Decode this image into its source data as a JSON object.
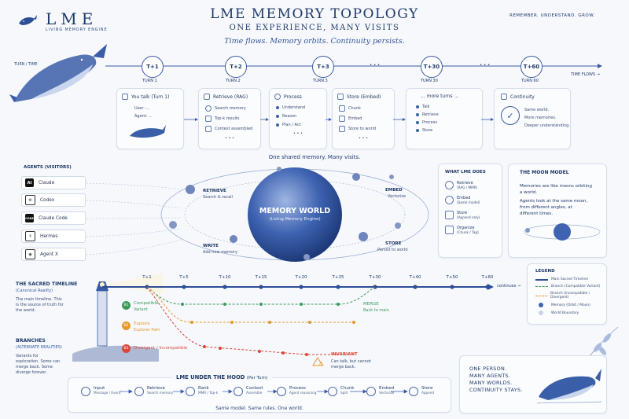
{
  "brand": {
    "name": "LME",
    "tagline": "LIVING MEMORY ENGINE"
  },
  "header": {
    "title": "LME MEMORY TOPOLOGY",
    "subtitle": "ONE EXPERIENCE, MANY VISITS",
    "motto": "Time flows. Memory orbits. Continuity persists.",
    "top_right": "REMEMBER. UNDERSTAND. GROW."
  },
  "timeline": {
    "left_label": "TURN / TIME",
    "right_label": "TIME FLOWS →",
    "nodes": [
      {
        "id": "T+1",
        "caption": "TURN 1"
      },
      {
        "id": "T+2",
        "caption": "TURN 2"
      },
      {
        "id": "T+3",
        "caption": "TURN 3"
      },
      {
        "id": "T+30",
        "caption": "TURN 30"
      },
      {
        "id": "T+60",
        "caption": "TURN 60"
      }
    ],
    "ellipsis": "• • •"
  },
  "turn_cards": {
    "you_talk": {
      "title": "You talk (Turn 1)",
      "user": "User: ...",
      "agent": "Agent: ..."
    },
    "retrieve": {
      "title": "Retrieve (RAG)",
      "items": [
        "Search memory",
        "Top-k results",
        "Context assembled"
      ]
    },
    "process": {
      "title": "Process",
      "items": [
        "Understand",
        "Reason",
        "Plan / Act"
      ]
    },
    "store": {
      "title": "Store (Embed)",
      "items": [
        "Chunk",
        "Embed",
        "Store to world"
      ]
    },
    "more": {
      "title": "... more turns ...",
      "items": [
        "Talk",
        "Retrieve",
        "Process",
        "Store"
      ]
    },
    "continuity": {
      "title": "Continuity",
      "items": [
        "Same world.",
        "More memories.",
        "Deeper understanding."
      ]
    },
    "more_dots": "• • •"
  },
  "shared_caption": "One shared memory. Many visits.",
  "agents": {
    "heading": "AGENTS (VISITORS)",
    "list": [
      {
        "name": "Claude",
        "icon": "AI"
      },
      {
        "name": "Codex",
        "icon": "⚙"
      },
      {
        "name": "Claude Code",
        "icon": "CODE"
      },
      {
        "name": "Hermes",
        "icon": "☤"
      },
      {
        "name": "Agent X",
        "icon": "◉"
      }
    ]
  },
  "world": {
    "title": "MEMORY WORLD",
    "subtitle": "(Living Memory Engine)",
    "retrieve": {
      "label": "RETRIEVE",
      "desc": "Search & recall"
    },
    "write": {
      "label": "WRITE",
      "desc": "Add new memory"
    },
    "embed": {
      "label": "EMBED",
      "desc": "Vectorize"
    },
    "store": {
      "label": "STORE",
      "desc": "Persist to world"
    }
  },
  "what_lme_does": {
    "title": "WHAT LME DOES",
    "items": [
      {
        "name": "Retrieve",
        "desc": "(RAG / MMR)"
      },
      {
        "name": "Embed",
        "desc": "(Same model)"
      },
      {
        "name": "Store",
        "desc": "(Append only)"
      },
      {
        "name": "Organize",
        "desc": "(Chunk / Tag)"
      }
    ]
  },
  "moon_model": {
    "title": "THE MOON MODEL",
    "p1": "Memories are like moons orbiting a world.",
    "p2": "Agents look at the same moon, from different angles, at different times."
  },
  "sacred": {
    "title": "THE SACRED TIMELINE",
    "sub": "(Canonical Reality)",
    "desc": "The main timeline. This is the source of truth for the world.",
    "ticks": [
      "T+1",
      "T+5",
      "T+10",
      "T+15",
      "T+20",
      "T+25",
      "T+30",
      "T+40",
      "T+50",
      "T+60"
    ],
    "continues": "continues →"
  },
  "branches": {
    "title": "BRANCHES",
    "sub": "(ALTERNATE REALITIES)",
    "desc": "Variants for exploration. Some can merge back. Some diverge forever.",
    "b1": {
      "tag": "B1",
      "name": "Compatible",
      "sub": "Variant",
      "color": "#3c9a5b"
    },
    "b2": {
      "tag": "B2",
      "name": "Explore",
      "sub": "Explorer Path",
      "color": "#e39a2d"
    },
    "b3": {
      "tag": "B3",
      "name": "Divergent / Incompatible",
      "color": "#d9483b"
    },
    "merge": {
      "label": "MERGE",
      "desc": "Back to main"
    },
    "invariant": {
      "label": "INVARIANT",
      "desc": "Can talk, but cannot merge back."
    }
  },
  "legend": {
    "title": "LEGEND",
    "items": [
      "Main Sacred Timeline",
      "Branch (Compatible Variant)",
      "Branch (Incompatible / Divergent)",
      "Memory (Orbit / Moon)",
      "World Boundary"
    ]
  },
  "hood": {
    "title": "LME UNDER THE HOOD",
    "title_sub": "(Per Turn)",
    "steps": [
      {
        "name": "Input",
        "desc": "Message / Event"
      },
      {
        "name": "Retrieve",
        "desc": "Search memory"
      },
      {
        "name": "Rank",
        "desc": "MMR / Top-k"
      },
      {
        "name": "Context",
        "desc": "Assemble"
      },
      {
        "name": "Process",
        "desc": "Agent reasoning"
      },
      {
        "name": "Chunk",
        "desc": "Split"
      },
      {
        "name": "Embed",
        "desc": "Vectorize"
      },
      {
        "name": "Store",
        "desc": "Append"
      }
    ],
    "footer": "Same model. Same rules. One world."
  },
  "closing": [
    "ONE PERSON.",
    "MANY AGENTS.",
    "MANY WORLDS.",
    "CONTINUITY STAYS."
  ],
  "colors": {
    "navy": "#1f3a6b",
    "blue": "#3a5aa5",
    "green": "#3c9a5b",
    "orange": "#e39a2d",
    "red": "#d9483b"
  }
}
